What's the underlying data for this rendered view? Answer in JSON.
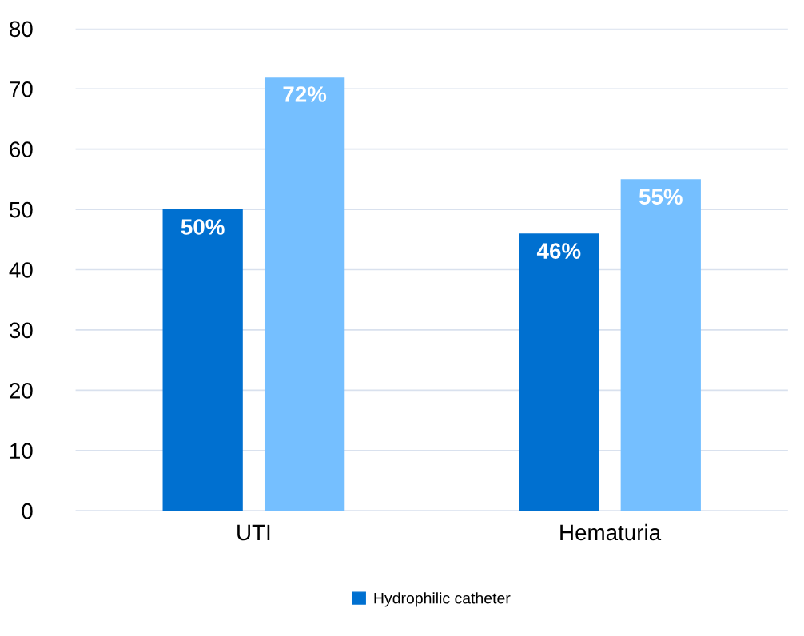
{
  "chart_data": {
    "type": "bar",
    "categories": [
      "UTI",
      "Hematuria"
    ],
    "series": [
      {
        "name": "Hydrophilic catheter",
        "color": "#0070d0",
        "values": [
          50,
          46
        ],
        "value_labels": [
          "50%",
          "46%"
        ]
      },
      {
        "color": "#75bfff",
        "values": [
          72,
          55
        ],
        "value_labels": [
          "72%",
          "55%"
        ]
      }
    ],
    "ylim": [
      0,
      80
    ],
    "yticks": [
      0,
      10,
      20,
      30,
      40,
      50,
      60,
      70,
      80
    ],
    "grid": "y",
    "legend": "bottom"
  }
}
